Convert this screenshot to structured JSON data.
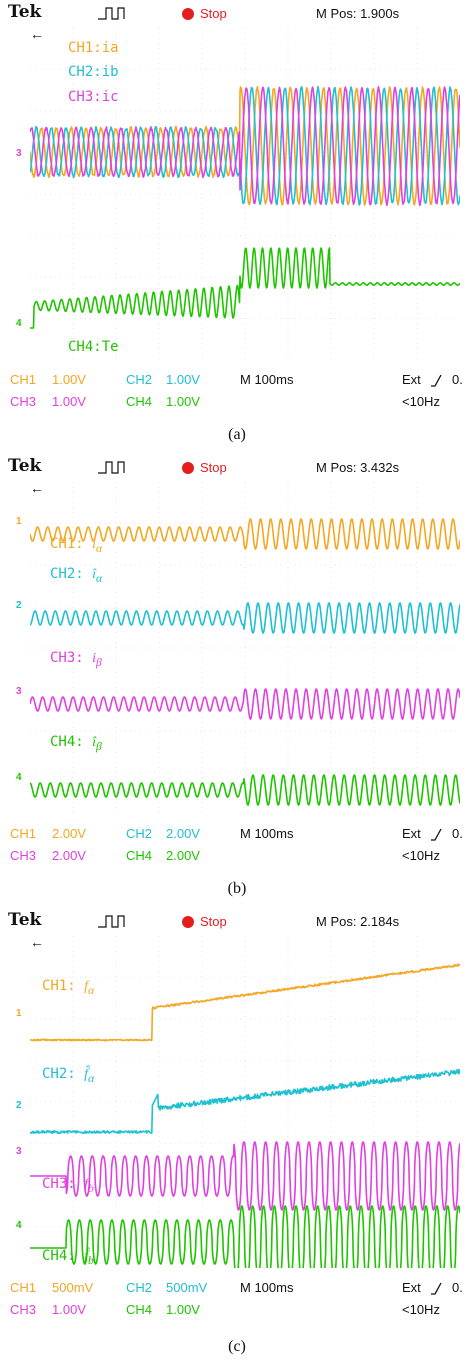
{
  "panels": [
    {
      "id": "a",
      "header": {
        "brand": "Tek",
        "status": "Stop",
        "mpos": "M Pos: 1.900s"
      },
      "labels": [
        {
          "text": "CH1:ia",
          "color": "#f5a623"
        },
        {
          "text": "CH2:ib",
          "color": "#1fc0d0"
        },
        {
          "text": "CH3:ic",
          "color": "#e040e0"
        },
        {
          "text": "CH4:Te",
          "color": "#1fc400"
        }
      ],
      "indicators": [
        "3",
        "4"
      ],
      "footer": {
        "row1": [
          {
            "text": "CH1",
            "color": "#f5a623"
          },
          {
            "text": "1.00V",
            "color": "#f5a623"
          },
          {
            "text": "CH2",
            "color": "#1fc0d0"
          },
          {
            "text": "1.00V",
            "color": "#1fc0d0"
          },
          {
            "text": "M 100ms",
            "color": "#111111"
          },
          {
            "text": "Ext",
            "color": "#111111"
          },
          {
            "text": "0.",
            "color": "#111111"
          }
        ],
        "row2": [
          {
            "text": "CH3",
            "color": "#e040e0"
          },
          {
            "text": "1.00V",
            "color": "#e040e0"
          },
          {
            "text": "CH4",
            "color": "#1fc400"
          },
          {
            "text": "1.00V",
            "color": "#1fc400"
          },
          {
            "text": "<10Hz",
            "color": "#111111"
          }
        ]
      },
      "caption": "(a)"
    },
    {
      "id": "b",
      "header": {
        "brand": "Tek",
        "status": "Stop",
        "mpos": "M Pos: 3.432s"
      },
      "labels": [
        {
          "text": "CH1: ",
          "sym": "i",
          "sub": "α",
          "color": "#f5a623"
        },
        {
          "text": "CH2: ",
          "sym": "î",
          "sub": "α",
          "color": "#1fc0d0"
        },
        {
          "text": "CH3: ",
          "sym": "i",
          "sub": "β",
          "color": "#e040e0"
        },
        {
          "text": "CH4: ",
          "sym": "î",
          "sub": "β",
          "color": "#1fc400"
        }
      ],
      "indicators": [
        "1",
        "2",
        "3",
        "4"
      ],
      "footer": {
        "row1": [
          {
            "text": "CH1",
            "color": "#f5a623"
          },
          {
            "text": "2.00V",
            "color": "#f5a623"
          },
          {
            "text": "CH2",
            "color": "#1fc0d0"
          },
          {
            "text": "2.00V",
            "color": "#1fc0d0"
          },
          {
            "text": "M 100ms",
            "color": "#111111"
          },
          {
            "text": "Ext",
            "color": "#111111"
          },
          {
            "text": "0.",
            "color": "#111111"
          }
        ],
        "row2": [
          {
            "text": "CH3",
            "color": "#e040e0"
          },
          {
            "text": "2.00V",
            "color": "#e040e0"
          },
          {
            "text": "CH4",
            "color": "#1fc400"
          },
          {
            "text": "2.00V",
            "color": "#1fc400"
          },
          {
            "text": "<10Hz",
            "color": "#111111"
          }
        ]
      },
      "caption": "(b)"
    },
    {
      "id": "c",
      "header": {
        "brand": "Tek",
        "status": "Stop",
        "mpos": "M Pos: 2.184s"
      },
      "labels": [
        {
          "text": "CH1: ",
          "sym": "f",
          "sub": "α",
          "color": "#f5a623"
        },
        {
          "text": "CH2: ",
          "sym": "f̂",
          "sub": "α",
          "color": "#1fc0d0"
        },
        {
          "text": "CH3: ",
          "sym": "f",
          "sub": "b",
          "color": "#e040e0"
        },
        {
          "text": "CH4: ",
          "sym": "f̂",
          "sub": "b",
          "color": "#1fc400"
        }
      ],
      "indicators": [
        "1",
        "2",
        "3",
        "4"
      ],
      "footer": {
        "row1": [
          {
            "text": "CH1",
            "color": "#f5a623"
          },
          {
            "text": "500mV",
            "color": "#f5a623"
          },
          {
            "text": "CH2",
            "color": "#1fc0d0"
          },
          {
            "text": "500mV",
            "color": "#1fc0d0"
          },
          {
            "text": "M 100ms",
            "color": "#111111"
          },
          {
            "text": "Ext",
            "color": "#111111"
          },
          {
            "text": "0.",
            "color": "#111111"
          }
        ],
        "row2": [
          {
            "text": "CH3",
            "color": "#e040e0"
          },
          {
            "text": "1.00V",
            "color": "#e040e0"
          },
          {
            "text": "CH4",
            "color": "#1fc400"
          },
          {
            "text": "1.00V",
            "color": "#1fc400"
          },
          {
            "text": "<10Hz",
            "color": "#111111"
          }
        ]
      },
      "caption": "(c)"
    }
  ],
  "colors": {
    "ch1": "#f5a623",
    "ch2": "#1fc0d0",
    "ch3": "#e040e0",
    "ch4": "#1fc400",
    "stop": "#e41e1e"
  },
  "icons": [
    "trigger-pulse-icon",
    "run-stop-dot-icon",
    "ground-marker-icon",
    "slope-rising-icon"
  ]
}
